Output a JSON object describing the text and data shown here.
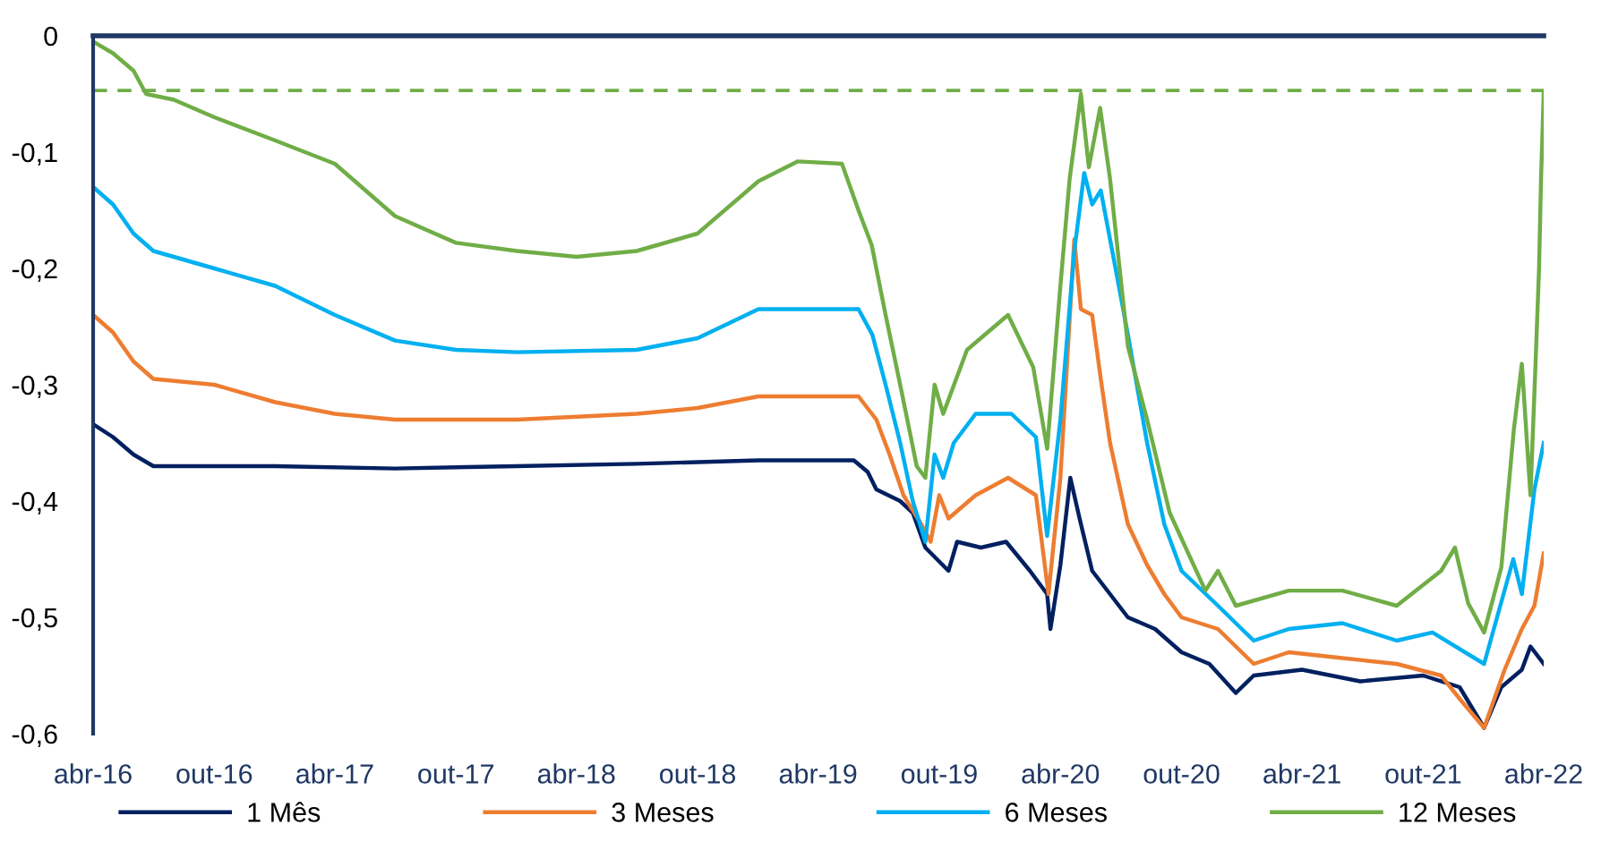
{
  "chart_data": {
    "type": "line",
    "xlim": [
      "2016-04-01",
      "2022-04-01"
    ],
    "xticks": [
      {
        "value": "2016-04-01",
        "label": "abr-16"
      },
      {
        "value": "2016-10-01",
        "label": "out-16"
      },
      {
        "value": "2017-04-01",
        "label": "abr-17"
      },
      {
        "value": "2017-10-01",
        "label": "out-17"
      },
      {
        "value": "2018-04-01",
        "label": "abr-18"
      },
      {
        "value": "2018-10-01",
        "label": "out-18"
      },
      {
        "value": "2019-04-01",
        "label": "abr-19"
      },
      {
        "value": "2019-10-01",
        "label": "out-19"
      },
      {
        "value": "2020-04-01",
        "label": "abr-20"
      },
      {
        "value": "2020-10-01",
        "label": "out-20"
      },
      {
        "value": "2021-04-01",
        "label": "abr-21"
      },
      {
        "value": "2021-10-01",
        "label": "out-21"
      },
      {
        "value": "2022-04-01",
        "label": "abr-22"
      }
    ],
    "ylim": [
      -0.6,
      0
    ],
    "yticks": [
      {
        "value": 0,
        "label": "0"
      },
      {
        "value": -0.1,
        "label": "-0,1"
      },
      {
        "value": -0.2,
        "label": "-0,2"
      },
      {
        "value": -0.3,
        "label": "-0,3"
      },
      {
        "value": -0.4,
        "label": "-0,4"
      },
      {
        "value": -0.5,
        "label": "-0,5"
      },
      {
        "value": -0.6,
        "label": "-0,6"
      }
    ],
    "grid": false,
    "legend": "bottom",
    "marker": "none",
    "line_style": "solid",
    "ref_lines": [
      {
        "axis": "y",
        "value": -0.047,
        "label": null,
        "color": "#70ad47",
        "line_style": "dashed"
      }
    ],
    "series": [
      {
        "name": "1 Mês",
        "color": "#002060",
        "x": [
          "2016-04-01",
          "2016-05-01",
          "2016-06-01",
          "2016-07-01",
          "2017-01-01",
          "2017-07-01",
          "2018-01-01",
          "2018-07-01",
          "2019-01-01",
          "2019-04-01",
          "2019-05-25",
          "2019-06-15",
          "2019-06-28",
          "2019-08-03",
          "2019-08-22",
          "2019-09-10",
          "2019-10-15",
          "2019-10-28",
          "2019-12-03",
          "2020-01-10",
          "2020-02-15",
          "2020-03-12",
          "2020-03-17",
          "2020-04-01",
          "2020-04-16",
          "2020-04-30",
          "2020-05-19",
          "2020-06-15",
          "2020-07-12",
          "2020-08-22",
          "2020-10-01",
          "2020-11-12",
          "2020-12-22",
          "2021-01-18",
          "2021-04-01",
          "2021-06-28",
          "2021-10-01",
          "2021-11-25",
          "2022-01-01",
          "2022-01-27",
          "2022-02-27",
          "2022-03-12",
          "2022-04-01"
        ],
        "values": [
          -0.334,
          -0.345,
          -0.36,
          -0.37,
          -0.37,
          -0.372,
          -0.37,
          -0.368,
          -0.365,
          -0.365,
          -0.365,
          -0.375,
          -0.39,
          -0.4,
          -0.41,
          -0.44,
          -0.46,
          -0.435,
          -0.44,
          -0.435,
          -0.46,
          -0.48,
          -0.51,
          -0.455,
          -0.38,
          -0.415,
          -0.46,
          -0.48,
          -0.5,
          -0.51,
          -0.53,
          -0.54,
          -0.565,
          -0.55,
          -0.545,
          -0.555,
          -0.55,
          -0.56,
          -0.595,
          -0.56,
          -0.545,
          -0.525,
          -0.54
        ]
      },
      {
        "name": "3 Meses",
        "color": "#ed7d31",
        "x": [
          "2016-04-01",
          "2016-05-01",
          "2016-06-01",
          "2016-07-01",
          "2016-10-01",
          "2017-01-01",
          "2017-04-01",
          "2017-07-01",
          "2018-01-01",
          "2018-07-01",
          "2018-10-01",
          "2019-01-01",
          "2019-06-01",
          "2019-06-28",
          "2019-07-18",
          "2019-08-08",
          "2019-09-04",
          "2019-09-18",
          "2019-10-01",
          "2019-10-15",
          "2019-11-25",
          "2020-01-13",
          "2020-02-24",
          "2020-03-14",
          "2020-04-01",
          "2020-04-22",
          "2020-05-02",
          "2020-05-19",
          "2020-06-01",
          "2020-06-15",
          "2020-07-12",
          "2020-08-10",
          "2020-09-05",
          "2020-10-01",
          "2020-11-25",
          "2021-01-18",
          "2021-03-12",
          "2021-06-01",
          "2021-08-22",
          "2021-10-28",
          "2021-11-25",
          "2022-01-01",
          "2022-02-01",
          "2022-02-27",
          "2022-03-18",
          "2022-04-01"
        ],
        "values": [
          -0.24,
          -0.255,
          -0.28,
          -0.295,
          -0.3,
          -0.315,
          -0.325,
          -0.33,
          -0.33,
          -0.325,
          -0.32,
          -0.31,
          -0.31,
          -0.33,
          -0.36,
          -0.395,
          -0.42,
          -0.435,
          -0.395,
          -0.415,
          -0.395,
          -0.38,
          -0.395,
          -0.48,
          -0.38,
          -0.175,
          -0.235,
          -0.24,
          -0.295,
          -0.35,
          -0.42,
          -0.455,
          -0.48,
          -0.5,
          -0.51,
          -0.54,
          -0.53,
          -0.535,
          -0.54,
          -0.55,
          -0.57,
          -0.595,
          -0.545,
          -0.51,
          -0.49,
          -0.445
        ]
      },
      {
        "name": "6 Meses",
        "color": "#00b0f0",
        "x": [
          "2016-04-01",
          "2016-05-01",
          "2016-06-01",
          "2016-07-01",
          "2016-10-01",
          "2017-01-01",
          "2017-04-01",
          "2017-07-01",
          "2017-10-01",
          "2018-01-01",
          "2018-07-01",
          "2018-10-01",
          "2019-01-01",
          "2019-06-01",
          "2019-06-22",
          "2019-07-12",
          "2019-08-03",
          "2019-08-22",
          "2019-09-10",
          "2019-09-24",
          "2019-10-07",
          "2019-10-23",
          "2019-11-25",
          "2020-01-18",
          "2020-02-24",
          "2020-03-12",
          "2020-04-01",
          "2020-04-22",
          "2020-05-07",
          "2020-05-19",
          "2020-06-01",
          "2020-06-20",
          "2020-07-12",
          "2020-08-10",
          "2020-09-05",
          "2020-10-01",
          "2020-11-25",
          "2021-01-18",
          "2021-03-12",
          "2021-06-01",
          "2021-08-22",
          "2021-10-15",
          "2022-01-01",
          "2022-02-14",
          "2022-02-27",
          "2022-03-18",
          "2022-04-01"
        ],
        "values": [
          -0.13,
          -0.145,
          -0.17,
          -0.185,
          -0.2,
          -0.215,
          -0.24,
          -0.262,
          -0.27,
          -0.272,
          -0.27,
          -0.26,
          -0.235,
          -0.235,
          -0.257,
          -0.3,
          -0.35,
          -0.4,
          -0.435,
          -0.36,
          -0.38,
          -0.35,
          -0.325,
          -0.325,
          -0.345,
          -0.43,
          -0.33,
          -0.185,
          -0.118,
          -0.145,
          -0.133,
          -0.19,
          -0.257,
          -0.35,
          -0.42,
          -0.46,
          -0.49,
          -0.52,
          -0.51,
          -0.505,
          -0.52,
          -0.513,
          -0.54,
          -0.45,
          -0.48,
          -0.39,
          -0.35
        ]
      },
      {
        "name": "12 Meses",
        "color": "#70ad47",
        "x": [
          "2016-04-01",
          "2016-05-01",
          "2016-06-01",
          "2016-06-20",
          "2016-08-01",
          "2016-10-01",
          "2017-01-01",
          "2017-04-01",
          "2017-07-01",
          "2017-10-01",
          "2018-01-01",
          "2018-04-01",
          "2018-07-01",
          "2018-10-01",
          "2019-01-01",
          "2019-03-01",
          "2019-05-07",
          "2019-06-01",
          "2019-06-21",
          "2019-07-12",
          "2019-08-03",
          "2019-08-28",
          "2019-09-10",
          "2019-09-24",
          "2019-10-07",
          "2019-11-12",
          "2020-01-13",
          "2020-02-20",
          "2020-03-12",
          "2020-04-01",
          "2020-04-15",
          "2020-05-02",
          "2020-05-14",
          "2020-05-31",
          "2020-06-15",
          "2020-07-12",
          "2020-08-10",
          "2020-09-13",
          "2020-11-06",
          "2020-11-25",
          "2020-12-22",
          "2021-03-12",
          "2021-06-01",
          "2021-08-22",
          "2021-10-28",
          "2021-11-18",
          "2021-12-08",
          "2022-01-01",
          "2022-01-27",
          "2022-02-15",
          "2022-02-27",
          "2022-03-12",
          "2022-03-20",
          "2022-03-25",
          "2022-03-28",
          "2022-04-01"
        ],
        "values": [
          -0.005,
          -0.015,
          -0.03,
          -0.05,
          -0.055,
          -0.07,
          -0.09,
          -0.11,
          -0.155,
          -0.178,
          -0.185,
          -0.19,
          -0.185,
          -0.17,
          -0.125,
          -0.108,
          -0.11,
          -0.15,
          -0.18,
          -0.24,
          -0.3,
          -0.37,
          -0.38,
          -0.3,
          -0.325,
          -0.27,
          -0.24,
          -0.285,
          -0.355,
          -0.215,
          -0.123,
          -0.05,
          -0.113,
          -0.062,
          -0.123,
          -0.267,
          -0.33,
          -0.41,
          -0.477,
          -0.46,
          -0.49,
          -0.477,
          -0.477,
          -0.49,
          -0.46,
          -0.44,
          -0.488,
          -0.513,
          -0.457,
          -0.338,
          -0.282,
          -0.395,
          -0.277,
          -0.2,
          -0.123,
          -0.05
        ]
      }
    ]
  }
}
